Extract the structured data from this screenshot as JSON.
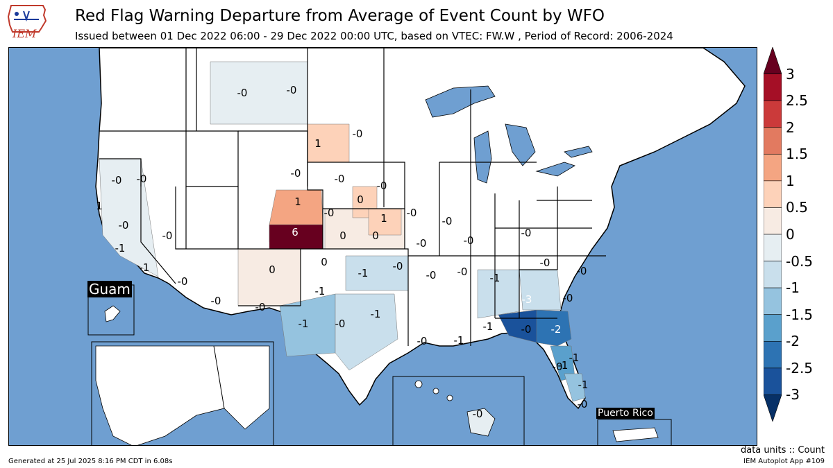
{
  "header": {
    "title": "Red Flag Warning Departure from Average of Event Count by WFO",
    "subtitle": "Issued between 01 Dec 2022 06:00 - 29 Dec 2022 00:00 UTC, based on VTEC: FW.W  , Period of Record: 2006-2024",
    "logo_text": "IEM"
  },
  "colors": {
    "ocean": "#6f9fd1",
    "land_default": "#ffffff",
    "lake": "#6f9fd1"
  },
  "colorbar": {
    "ticks": [
      "3",
      "2.5",
      "2",
      "1.5",
      "1",
      "0.5",
      "0",
      "-0.5",
      "-1",
      "-1.5",
      "-2",
      "-2.5",
      "-3"
    ],
    "colors": [
      "#67001f",
      "#a50f26",
      "#cb3a3a",
      "#e27a60",
      "#f4a582",
      "#fdd2b9",
      "#f7ebe3",
      "#e6eef2",
      "#c9dfec",
      "#95c3df",
      "#5aa0cc",
      "#2d73b3",
      "#1a529b",
      "#073067"
    ]
  },
  "insets": {
    "guam_label": "Guam",
    "puerto_rico_label": "Puerto Rico"
  },
  "map_labels": [
    {
      "text": "-0"
    },
    {
      "text": "-0"
    },
    {
      "text": "1"
    },
    {
      "text": "-0"
    },
    {
      "text": "-0"
    },
    {
      "text": "-0"
    },
    {
      "text": "-0"
    },
    {
      "text": "-0"
    },
    {
      "text": "-0"
    },
    {
      "text": "1"
    },
    {
      "text": "1"
    },
    {
      "text": "0"
    },
    {
      "text": "-0"
    },
    {
      "text": "1"
    },
    {
      "text": "-0"
    },
    {
      "text": "-0"
    },
    {
      "text": "-1"
    },
    {
      "text": "-0"
    },
    {
      "text": "6"
    },
    {
      "text": "0"
    },
    {
      "text": "0"
    },
    {
      "text": "-0"
    },
    {
      "text": "-0"
    },
    {
      "text": "-0"
    },
    {
      "text": "-0"
    },
    {
      "text": "-1"
    },
    {
      "text": "-0"
    },
    {
      "text": "0"
    },
    {
      "text": "0"
    },
    {
      "text": "-1"
    },
    {
      "text": "-0"
    },
    {
      "text": "-0"
    },
    {
      "text": "-0"
    },
    {
      "text": "-0"
    },
    {
      "text": "-0"
    },
    {
      "text": "-1"
    },
    {
      "text": "-0"
    },
    {
      "text": "-0"
    },
    {
      "text": "-1"
    },
    {
      "text": "-1"
    },
    {
      "text": "-0"
    },
    {
      "text": "-1"
    },
    {
      "text": "-1"
    },
    {
      "text": "-0"
    },
    {
      "text": "-3"
    },
    {
      "text": "-2"
    },
    {
      "text": "-1"
    },
    {
      "text": "-0"
    },
    {
      "text": "-0"
    },
    {
      "text": "-0"
    },
    {
      "text": "-1"
    },
    {
      "text": "-2"
    },
    {
      "text": "-1"
    },
    {
      "text": "-1"
    },
    {
      "text": "-0"
    },
    {
      "text": "-0"
    }
  ],
  "footer": {
    "generated": "Generated at 25 Jul 2025 8:16 PM CDT in 6.08s",
    "units": "data units :: Count",
    "app": "IEM Autoplot App #109"
  }
}
